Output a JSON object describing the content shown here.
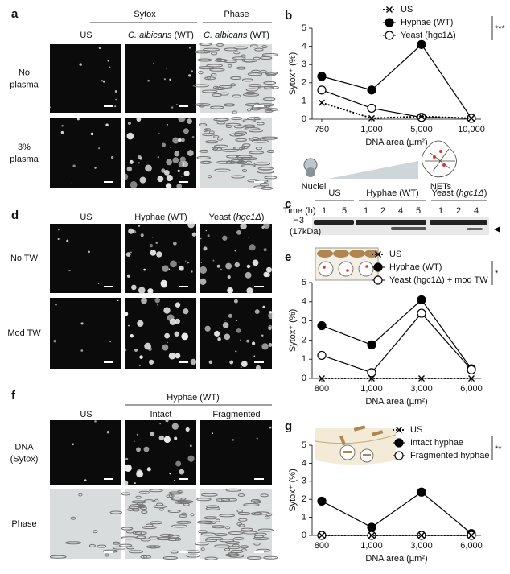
{
  "panel_a": {
    "letter": "a",
    "group_sytox": "Sytox",
    "group_phase": "Phase",
    "cols": [
      {
        "plain": "US"
      },
      {
        "italic": "C. albicans",
        "plain": " (WT)"
      },
      {
        "italic": "C. albicans",
        "plain": " (WT)"
      }
    ],
    "rows": [
      [
        "No",
        "plasma"
      ],
      [
        "3%",
        "plasma"
      ]
    ]
  },
  "panel_c": {
    "letter": "c",
    "time": "Time (h)",
    "groups": [
      {
        "plain": "US"
      },
      {
        "plain": "Hyphae (WT)"
      },
      {
        "plain": "Yeast (",
        "italic": "hgc1Δ",
        "end": ")"
      }
    ],
    "lanes": [
      "1",
      "5",
      "1",
      "2",
      "4",
      "5",
      "1",
      "2",
      "4"
    ],
    "protein": "H3",
    "size": "(17kDa)"
  },
  "diagram_b": {
    "nuclei": "Nuclei",
    "nets": "NETs"
  },
  "panel_d": {
    "letter": "d",
    "cols": [
      {
        "plain": "US"
      },
      {
        "plain": "Hyphae (WT)"
      },
      {
        "plain": "Yeast (",
        "italic": "hgc1Δ",
        "end": ")"
      }
    ],
    "rows": [
      "No TW",
      "Mod TW"
    ]
  },
  "panel_f": {
    "letter": "f",
    "group": "Hyphae (WT)",
    "cols": [
      "US",
      "Intact",
      "Fragmented"
    ],
    "rows": [
      [
        "DNA",
        "(Sytox)"
      ],
      [
        "Phase"
      ]
    ]
  },
  "chart_data": [
    {
      "type": "line",
      "panel_label": "b",
      "y_label": "Sytox⁺ (%)",
      "x_label": "DNA area (µm²)",
      "categories": [
        "750",
        "1,000",
        "5,000",
        "10,000"
      ],
      "ylim": [
        0,
        5
      ],
      "yticks": [
        0,
        1,
        2,
        3,
        4,
        5
      ],
      "significance": "***",
      "series": [
        {
          "name": "US",
          "color": "#000000",
          "marker": "x",
          "dashed": true,
          "values": [
            0.9,
            0.05,
            0.15,
            0.05
          ]
        },
        {
          "name": "Hyphae (WT)",
          "color": "#000000",
          "marker": "filled",
          "dashed": false,
          "values": [
            2.35,
            1.6,
            4.1,
            0.05
          ]
        },
        {
          "name": "Yeast (hgc1Δ)",
          "color": "#000000",
          "marker": "open",
          "dashed": false,
          "values": [
            1.6,
            0.6,
            0.1,
            0.05
          ]
        }
      ]
    },
    {
      "type": "line",
      "panel_label": "e",
      "y_label": "Sytox⁺ (%)",
      "x_label": "DNA area (µm²)",
      "categories": [
        "800",
        "1,000",
        "3,000",
        "6,000"
      ],
      "ylim": [
        0,
        5
      ],
      "yticks": [
        0,
        1,
        2,
        3,
        4,
        5
      ],
      "significance": "*",
      "series": [
        {
          "name": "US",
          "color": "#000000",
          "marker": "x",
          "dashed": true,
          "values": [
            0,
            0,
            0,
            0
          ]
        },
        {
          "name": "Hyphae (WT)",
          "color": "#000000",
          "marker": "filled",
          "dashed": false,
          "values": [
            2.75,
            1.75,
            4.1,
            0.5
          ]
        },
        {
          "name": "Yeast (hgc1Δ) + mod TW",
          "color": "#000000",
          "marker": "open",
          "dashed": false,
          "values": [
            1.2,
            0.3,
            3.4,
            0.45
          ]
        }
      ]
    },
    {
      "type": "line",
      "panel_label": "g",
      "y_label": "Sytox⁺ (%)",
      "x_label": "DNA area (µm²)",
      "categories": [
        "800",
        "1,000",
        "3,000",
        "6,000"
      ],
      "ylim": [
        0,
        5
      ],
      "yticks": [
        0,
        1,
        2,
        3,
        4,
        5
      ],
      "significance": "**",
      "series": [
        {
          "name": "US",
          "color": "#000000",
          "marker": "x",
          "dashed": true,
          "values": [
            0,
            0,
            0,
            0
          ]
        },
        {
          "name": "Intact hyphae",
          "color": "#000000",
          "marker": "filled",
          "dashed": false,
          "values": [
            1.9,
            0.45,
            2.4,
            0.1
          ]
        },
        {
          "name": "Fragmented hyphae",
          "color": "#000000",
          "marker": "open",
          "dashed": false,
          "values": [
            0,
            0,
            0,
            0
          ]
        }
      ]
    }
  ]
}
